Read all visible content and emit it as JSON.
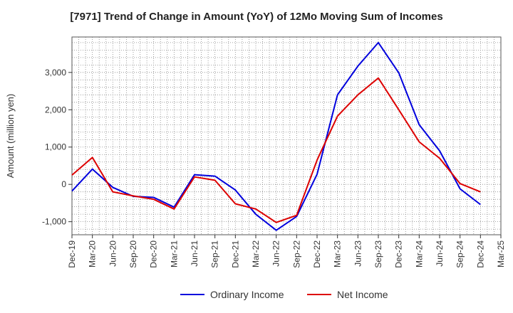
{
  "chart_data": {
    "type": "line",
    "title": "[7971]  Trend of Change in Amount (YoY) of 12Mo Moving Sum of Incomes",
    "xlabel": "",
    "ylabel": "Amount (million yen)",
    "ylim": [
      -1350,
      3950
    ],
    "yticks": [
      -1000,
      0,
      1000,
      2000,
      3000
    ],
    "ytick_labels": [
      "-1,000",
      "0",
      "1,000",
      "2,000",
      "3,000"
    ],
    "x": [
      "Dec-19",
      "Mar-20",
      "Jun-20",
      "Sep-20",
      "Dec-20",
      "Mar-21",
      "Jun-21",
      "Sep-21",
      "Dec-21",
      "Mar-22",
      "Jun-22",
      "Sep-22",
      "Dec-22",
      "Mar-23",
      "Jun-23",
      "Sep-23",
      "Dec-23",
      "Mar-24",
      "Jun-24",
      "Sep-24",
      "Dec-24",
      "Mar-25"
    ],
    "grid": true,
    "legend_position": "bottom",
    "series": [
      {
        "name": "Ordinary Income",
        "color": "#0000dd",
        "values": [
          -180,
          410,
          -80,
          -320,
          -350,
          -610,
          260,
          220,
          -150,
          -800,
          -1230,
          -860,
          270,
          2400,
          3170,
          3800,
          2990,
          1600,
          900,
          -120,
          -540,
          null
        ]
      },
      {
        "name": "Net Income",
        "color": "#dd0000",
        "values": [
          250,
          720,
          -200,
          -310,
          -400,
          -660,
          200,
          110,
          -520,
          -660,
          -1020,
          -830,
          650,
          1830,
          2400,
          2850,
          2000,
          1140,
          700,
          20,
          -200,
          null
        ]
      }
    ]
  }
}
